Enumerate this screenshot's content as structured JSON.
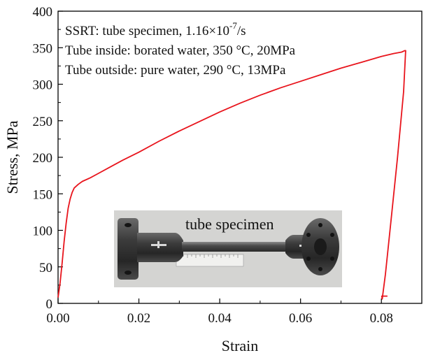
{
  "chart_data": {
    "type": "line",
    "title": "",
    "xlabel": "Strain",
    "ylabel": "Stress, MPa",
    "xlim": [
      0.0,
      0.09
    ],
    "ylim": [
      0,
      400
    ],
    "x_ticks": [
      0.0,
      0.02,
      0.04,
      0.06,
      0.08
    ],
    "x_tick_labels": [
      "0.00",
      "0.02",
      "0.04",
      "0.06",
      "0.08"
    ],
    "y_ticks": [
      0,
      50,
      100,
      150,
      200,
      250,
      300,
      350,
      400
    ],
    "y_tick_labels": [
      "0",
      "50",
      "100",
      "150",
      "200",
      "250",
      "300",
      "350",
      "400"
    ],
    "grid": false,
    "series": [
      {
        "name": "SSRT tube specimen",
        "color": "#e8141c",
        "x": [
          0.0,
          0.0005,
          0.001,
          0.0015,
          0.002,
          0.0025,
          0.003,
          0.0035,
          0.004,
          0.005,
          0.006,
          0.008,
          0.01,
          0.013,
          0.016,
          0.02,
          0.025,
          0.03,
          0.035,
          0.04,
          0.045,
          0.05,
          0.055,
          0.06,
          0.065,
          0.07,
          0.075,
          0.08,
          0.083,
          0.085,
          0.0858,
          0.086,
          0.0855,
          0.084,
          0.0825,
          0.081,
          0.0802,
          0.0801,
          0.0815
        ],
        "y": [
          8,
          28,
          55,
          85,
          110,
          130,
          143,
          152,
          158,
          163,
          167,
          172,
          178,
          187,
          196,
          207,
          222,
          236,
          249,
          262,
          274,
          285,
          295,
          304,
          313,
          322,
          330,
          338,
          342,
          344,
          346,
          346,
          290,
          200,
          120,
          40,
          6,
          10,
          10
        ]
      }
    ],
    "annotations": [
      "SSRT: tube specimen, 1.16×10",
      "-7",
      "/s",
      "Tube inside: borated water, 350 °C, 20MPa",
      "Tube outside: pure water, 290 °C, 13MPa"
    ],
    "inset_caption": "tube specimen"
  }
}
